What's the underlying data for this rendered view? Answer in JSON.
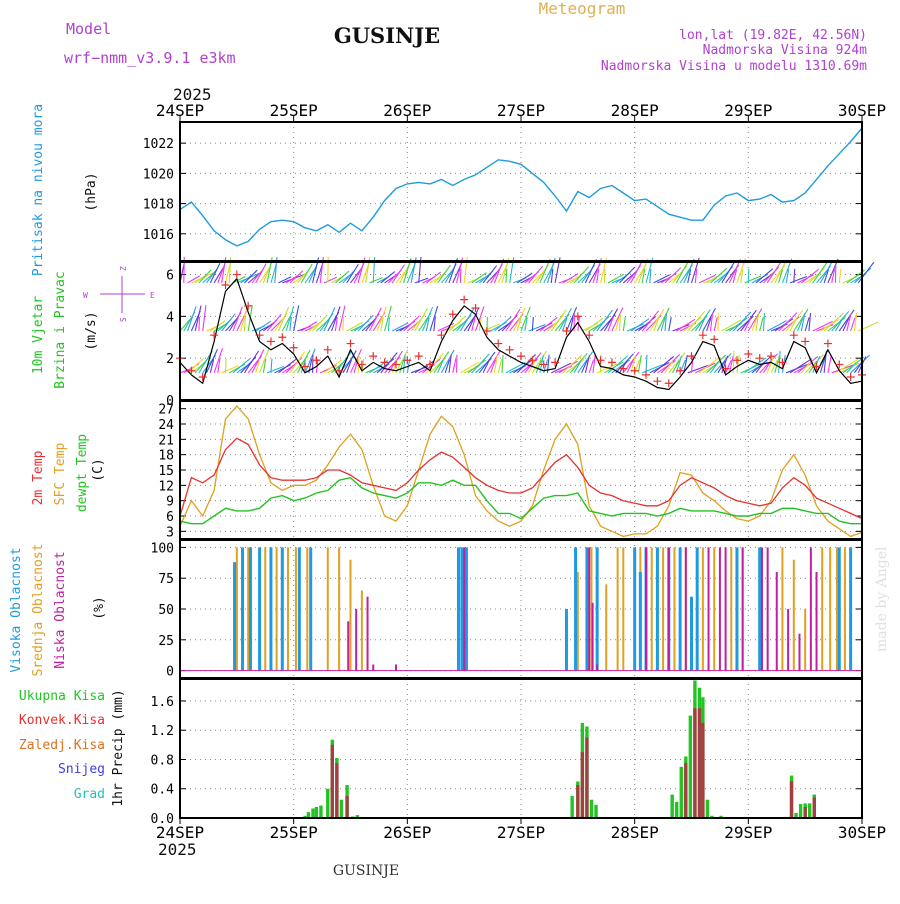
{
  "header": {
    "model_label": "Model",
    "model_name": "wrf−nmm_v3.9.1  e3km",
    "station": "GUSINJE",
    "meteogram": "Meteogram",
    "coords": "lon,lat (19.82E, 42.56N)",
    "elevation": "Nadmorska Visina 924m",
    "model_elevation": "Nadmorska Visina u modelu 1310.69m",
    "year_top": "2025",
    "year_bottom": "2025",
    "footer_station": "GUSINJE",
    "credit": "made by Angel"
  },
  "colors": {
    "pressure": "#1e9be0",
    "wind_label": "#22c322",
    "temp_2m": "#e83030",
    "temp_sfc": "#e0a020",
    "dewpoint": "#22c322",
    "cloud_high": "#1e9be0",
    "cloud_mid": "#e0a020",
    "cloud_low": "#c020a0",
    "precip_total": "#22c322",
    "precip_conv": "#e83030",
    "precip_frozen": "#e07020",
    "snow": "#4040e0",
    "hail": "#20c0c0",
    "purple_text": "#b040d0",
    "title": "#101010",
    "meteogram_text": "#e0b050"
  },
  "chart_data": [
    {
      "panel": "pressure",
      "type": "line",
      "ylabel_main": "Pritisak na nivou mora",
      "ylabel_unit": "(hPa)",
      "ylim": [
        1014.2,
        1023.4
      ],
      "yticks": [
        1016,
        1018,
        1020,
        1022
      ],
      "x": [
        0,
        0.1,
        0.2,
        0.3,
        0.4,
        0.5,
        0.6,
        0.7,
        0.8,
        0.9,
        1.0,
        1.1,
        1.2,
        1.3,
        1.4,
        1.5,
        1.6,
        1.7,
        1.8,
        1.9,
        2.0,
        2.1,
        2.2,
        2.3,
        2.4,
        2.5,
        2.6,
        2.7,
        2.8,
        2.9,
        3.0,
        3.1,
        3.2,
        3.3,
        3.4,
        3.5,
        3.6,
        3.7,
        3.8,
        3.9,
        4.0,
        4.1,
        4.2,
        4.3,
        4.4,
        4.5,
        4.6,
        4.7,
        4.8,
        4.9,
        5.0,
        5.1,
        5.2,
        5.3,
        5.4,
        5.5,
        5.6,
        5.7,
        5.8,
        5.9,
        6.0
      ],
      "values": [
        1017.6,
        1018.1,
        1017.2,
        1016.2,
        1015.6,
        1015.2,
        1015.5,
        1016.3,
        1016.8,
        1016.9,
        1016.8,
        1016.4,
        1016.2,
        1016.6,
        1016.1,
        1016.7,
        1016.2,
        1017.1,
        1018.2,
        1019.0,
        1019.3,
        1019.4,
        1019.3,
        1019.6,
        1019.2,
        1019.6,
        1019.9,
        1020.4,
        1020.9,
        1020.8,
        1020.6,
        1020.0,
        1019.4,
        1018.5,
        1017.5,
        1018.8,
        1018.4,
        1019.0,
        1019.2,
        1018.7,
        1018.2,
        1018.3,
        1017.8,
        1017.3,
        1017.1,
        1016.9,
        1016.9,
        1017.9,
        1018.5,
        1018.7,
        1018.2,
        1018.3,
        1018.6,
        1018.1,
        1018.2,
        1018.7,
        1019.6,
        1020.5,
        1021.3,
        1022.1,
        1023.0
      ]
    },
    {
      "panel": "wind",
      "type": "line",
      "ylabel_main": "10m Vjetar",
      "ylabel_sub": "Brzina i Pravac",
      "ylabel_unit": "(m/s)",
      "compass": {
        "n": "Z",
        "w": "W",
        "e": "E",
        "s": "S"
      },
      "ylim": [
        0,
        6.6
      ],
      "yticks": [
        0,
        2,
        4,
        6
      ],
      "x": [
        0,
        0.1,
        0.2,
        0.3,
        0.4,
        0.5,
        0.6,
        0.7,
        0.8,
        0.9,
        1.0,
        1.1,
        1.2,
        1.3,
        1.4,
        1.5,
        1.6,
        1.7,
        1.8,
        1.9,
        2.0,
        2.1,
        2.2,
        2.3,
        2.4,
        2.5,
        2.6,
        2.7,
        2.8,
        2.9,
        3.0,
        3.1,
        3.2,
        3.3,
        3.4,
        3.5,
        3.6,
        3.7,
        3.8,
        3.9,
        4.0,
        4.1,
        4.2,
        4.3,
        4.4,
        4.5,
        4.6,
        4.7,
        4.8,
        4.9,
        5.0,
        5.1,
        5.2,
        5.3,
        5.4,
        5.5,
        5.6,
        5.7,
        5.8,
        5.9,
        6.0
      ],
      "speed": [
        1.8,
        1.2,
        0.8,
        2.8,
        5.2,
        5.8,
        4.2,
        2.8,
        2.4,
        2.7,
        2.2,
        1.3,
        1.6,
        2.1,
        1.1,
        2.4,
        1.4,
        1.8,
        1.5,
        1.4,
        1.6,
        1.8,
        1.4,
        2.8,
        3.8,
        4.5,
        4.1,
        3.0,
        2.4,
        2.1,
        1.8,
        1.6,
        1.4,
        1.5,
        3.0,
        3.7,
        2.8,
        1.6,
        1.5,
        1.2,
        1.1,
        0.9,
        0.6,
        0.5,
        1.1,
        1.8,
        2.8,
        2.6,
        1.2,
        1.6,
        1.9,
        1.7,
        1.8,
        1.5,
        2.8,
        2.5,
        1.3,
        2.4,
        1.4,
        0.8,
        0.9
      ],
      "gust": [
        2.0,
        1.4,
        1.1,
        3.1,
        5.5,
        6.0,
        4.5,
        3.1,
        2.8,
        3.0,
        2.5,
        1.6,
        1.9,
        2.4,
        1.4,
        2.7,
        1.7,
        2.1,
        1.8,
        1.7,
        1.9,
        2.1,
        1.7,
        3.1,
        4.1,
        4.8,
        4.4,
        3.3,
        2.7,
        2.4,
        2.1,
        1.9,
        1.7,
        1.8,
        3.3,
        4.0,
        3.1,
        1.9,
        1.8,
        1.5,
        1.4,
        1.2,
        0.9,
        0.8,
        1.4,
        2.1,
        3.1,
        2.9,
        1.5,
        1.9,
        2.2,
        2.0,
        2.1,
        1.8,
        3.1,
        2.8,
        1.6,
        2.7,
        1.7,
        1.1,
        1.2
      ]
    },
    {
      "panel": "temperature",
      "type": "line",
      "ylabel_2m": "2m Temp",
      "ylabel_sfc": "SFC Temp",
      "ylabel_dew": "dewpt Temp",
      "ylabel_unit": "(C)",
      "ylim": [
        1.5,
        28.5
      ],
      "yticks": [
        3,
        6,
        9,
        12,
        15,
        18,
        21,
        24,
        27
      ],
      "x": [
        0,
        0.1,
        0.2,
        0.3,
        0.4,
        0.5,
        0.6,
        0.7,
        0.8,
        0.9,
        1.0,
        1.1,
        1.2,
        1.3,
        1.4,
        1.5,
        1.6,
        1.7,
        1.8,
        1.9,
        2.0,
        2.1,
        2.2,
        2.3,
        2.4,
        2.5,
        2.6,
        2.7,
        2.8,
        2.9,
        3.0,
        3.1,
        3.2,
        3.3,
        3.4,
        3.5,
        3.6,
        3.7,
        3.8,
        3.9,
        4.0,
        4.1,
        4.2,
        4.3,
        4.4,
        4.5,
        4.6,
        4.7,
        4.8,
        4.9,
        5.0,
        5.1,
        5.2,
        5.3,
        5.4,
        5.5,
        5.6,
        5.7,
        5.8,
        5.9,
        6.0
      ],
      "temp_2m": [
        6.0,
        13.5,
        12.5,
        14.0,
        19.0,
        21.2,
        20.0,
        16.0,
        13.5,
        13.0,
        13.0,
        13.0,
        13.5,
        15.0,
        15.0,
        14.0,
        12.5,
        12.0,
        11.5,
        11.0,
        12.5,
        15.0,
        17.0,
        18.5,
        17.5,
        15.5,
        13.5,
        12.0,
        11.0,
        10.5,
        10.5,
        11.5,
        14.0,
        16.5,
        18.0,
        15.5,
        12.0,
        10.5,
        10.0,
        9.0,
        8.5,
        8.0,
        8.0,
        9.0,
        12.0,
        13.5,
        12.5,
        11.5,
        10.0,
        9.0,
        8.5,
        8.0,
        8.5,
        11.5,
        13.5,
        12.0,
        9.5,
        8.5,
        7.5,
        6.5,
        5.5
      ],
      "temp_sfc": [
        4.0,
        9.0,
        6.0,
        11.0,
        25.0,
        27.5,
        25.0,
        18.0,
        12.5,
        11.0,
        12.0,
        12.0,
        13.0,
        16.0,
        19.5,
        22.0,
        19.0,
        12.0,
        6.0,
        5.0,
        8.0,
        15.0,
        22.0,
        25.5,
        23.5,
        18.0,
        10.0,
        7.0,
        5.0,
        4.0,
        5.0,
        8.0,
        15.0,
        21.0,
        24.0,
        20.0,
        8.0,
        4.0,
        3.0,
        2.0,
        2.5,
        2.5,
        4.0,
        8.0,
        14.5,
        14.0,
        10.5,
        9.0,
        7.0,
        5.5,
        5.0,
        6.0,
        9.0,
        15.0,
        18.0,
        14.0,
        8.0,
        5.0,
        3.5,
        2.0,
        2.8
      ],
      "dewpoint": [
        5.0,
        4.5,
        4.5,
        6.0,
        7.5,
        7.0,
        7.0,
        7.5,
        9.5,
        10.0,
        9.0,
        9.5,
        10.5,
        11.0,
        13.0,
        13.5,
        11.5,
        10.5,
        10.0,
        9.5,
        10.5,
        12.5,
        12.5,
        12.0,
        13.0,
        12.0,
        12.0,
        9.0,
        6.5,
        6.5,
        5.5,
        7.5,
        9.5,
        10.0,
        10.0,
        10.5,
        7.0,
        6.5,
        6.0,
        6.5,
        6.5,
        6.5,
        6.0,
        6.5,
        7.5,
        7.0,
        7.0,
        7.0,
        6.5,
        6.0,
        6.0,
        6.5,
        6.5,
        7.5,
        7.5,
        7.0,
        6.5,
        6.5,
        5.0,
        4.5,
        4.5
      ]
    },
    {
      "panel": "clouds",
      "type": "bar",
      "ylabel_high": "Visoka Oblacnost",
      "ylabel_mid": "Srednja Oblacnost",
      "ylabel_low": "Niska Oblacnost",
      "ylabel_unit": "(%)",
      "ylim": [
        -6,
        106
      ],
      "yticks": [
        0,
        25,
        50,
        75,
        100
      ],
      "high": [
        [
          0.48,
          88
        ],
        [
          0.55,
          100
        ],
        [
          0.62,
          100
        ],
        [
          0.7,
          100
        ],
        [
          0.8,
          100
        ],
        [
          0.9,
          100
        ],
        [
          1.05,
          100
        ],
        [
          1.15,
          100
        ],
        [
          2.45,
          100
        ],
        [
          2.48,
          100
        ],
        [
          2.52,
          100
        ],
        [
          3.4,
          50
        ],
        [
          3.48,
          100
        ],
        [
          3.58,
          100
        ],
        [
          3.67,
          100
        ],
        [
          4.0,
          100
        ],
        [
          4.05,
          80
        ],
        [
          4.1,
          100
        ],
        [
          4.2,
          100
        ],
        [
          4.3,
          100
        ],
        [
          4.4,
          100
        ],
        [
          4.5,
          60
        ],
        [
          4.55,
          100
        ],
        [
          4.9,
          100
        ],
        [
          5.1,
          100
        ],
        [
          5.8,
          100
        ],
        [
          5.9,
          100
        ]
      ],
      "mid": [
        [
          0.5,
          100
        ],
        [
          0.6,
          100
        ],
        [
          0.75,
          100
        ],
        [
          0.85,
          100
        ],
        [
          0.95,
          100
        ],
        [
          1.02,
          100
        ],
        [
          1.12,
          100
        ],
        [
          1.3,
          100
        ],
        [
          1.4,
          100
        ],
        [
          1.5,
          90
        ],
        [
          1.6,
          65
        ],
        [
          3.5,
          80
        ],
        [
          3.58,
          100
        ],
        [
          3.62,
          100
        ],
        [
          3.75,
          70
        ],
        [
          3.85,
          100
        ],
        [
          3.9,
          100
        ],
        [
          4.05,
          100
        ],
        [
          4.15,
          100
        ],
        [
          4.25,
          100
        ],
        [
          4.35,
          100
        ],
        [
          4.45,
          100
        ],
        [
          4.6,
          100
        ],
        [
          4.7,
          100
        ],
        [
          4.85,
          100
        ],
        [
          4.95,
          100
        ],
        [
          5.3,
          100
        ],
        [
          5.4,
          90
        ],
        [
          5.5,
          50
        ],
        [
          5.65,
          100
        ],
        [
          5.72,
          100
        ],
        [
          5.78,
          100
        ],
        [
          5.85,
          100
        ]
      ],
      "low": [
        [
          1.48,
          40
        ],
        [
          1.55,
          50
        ],
        [
          1.65,
          60
        ],
        [
          1.7,
          5
        ],
        [
          1.9,
          5
        ],
        [
          2.5,
          100
        ],
        [
          3.6,
          100
        ],
        [
          3.63,
          55
        ],
        [
          3.67,
          5
        ],
        [
          4.1,
          100
        ],
        [
          4.3,
          100
        ],
        [
          4.45,
          100
        ],
        [
          4.65,
          100
        ],
        [
          4.75,
          100
        ],
        [
          4.8,
          100
        ],
        [
          4.95,
          100
        ],
        [
          5.12,
          100
        ],
        [
          5.17,
          100
        ],
        [
          5.25,
          80
        ],
        [
          5.35,
          50
        ],
        [
          5.45,
          30
        ],
        [
          5.55,
          100
        ],
        [
          5.6,
          80
        ]
      ]
    },
    {
      "panel": "precip",
      "type": "bar",
      "ylabel": "1hr Precip (mm)",
      "legend": [
        "Ukupna Kisa",
        "Konvek.Kisa",
        "Zaledj.Kisa",
        "Snijeg",
        "Grad"
      ],
      "ylim": [
        0,
        1.9
      ],
      "yticks": [
        0,
        0.4,
        0.8,
        1.2,
        1.6
      ],
      "total": [
        [
          1.1,
          0.03
        ],
        [
          1.13,
          0.08
        ],
        [
          1.17,
          0.13
        ],
        [
          1.2,
          0.15
        ],
        [
          1.24,
          0.17
        ],
        [
          1.3,
          0.4
        ],
        [
          1.34,
          1.07
        ],
        [
          1.38,
          0.82
        ],
        [
          1.42,
          0.25
        ],
        [
          1.47,
          0.45
        ],
        [
          1.52,
          0.02
        ],
        [
          1.56,
          0.04
        ],
        [
          3.45,
          0.3
        ],
        [
          3.5,
          0.5
        ],
        [
          3.54,
          1.3
        ],
        [
          3.58,
          1.25
        ],
        [
          3.62,
          0.25
        ],
        [
          3.66,
          0.18
        ],
        [
          4.33,
          0.32
        ],
        [
          4.37,
          0.22
        ],
        [
          4.41,
          0.7
        ],
        [
          4.45,
          0.84
        ],
        [
          4.49,
          1.4
        ],
        [
          4.53,
          1.88
        ],
        [
          4.57,
          1.78
        ],
        [
          4.6,
          1.65
        ],
        [
          4.64,
          0.25
        ],
        [
          4.68,
          0.03
        ],
        [
          4.76,
          0.03
        ],
        [
          5.38,
          0.58
        ],
        [
          5.42,
          0.07
        ],
        [
          5.46,
          0.19
        ],
        [
          5.5,
          0.2
        ],
        [
          5.54,
          0.2
        ],
        [
          5.58,
          0.32
        ]
      ],
      "convective": [
        [
          1.34,
          1.0
        ],
        [
          1.38,
          0.75
        ],
        [
          1.47,
          0.3
        ],
        [
          3.5,
          0.45
        ],
        [
          3.54,
          0.9
        ],
        [
          3.58,
          1.1
        ],
        [
          4.45,
          0.75
        ],
        [
          4.53,
          1.5
        ],
        [
          4.57,
          1.5
        ],
        [
          4.6,
          1.3
        ],
        [
          5.38,
          0.5
        ],
        [
          5.5,
          0.15
        ],
        [
          5.58,
          0.28
        ]
      ]
    }
  ],
  "x_axis": {
    "labels": [
      "24SEP",
      "25SEP",
      "26SEP",
      "27SEP",
      "28SEP",
      "29SEP",
      "30SEP"
    ]
  }
}
